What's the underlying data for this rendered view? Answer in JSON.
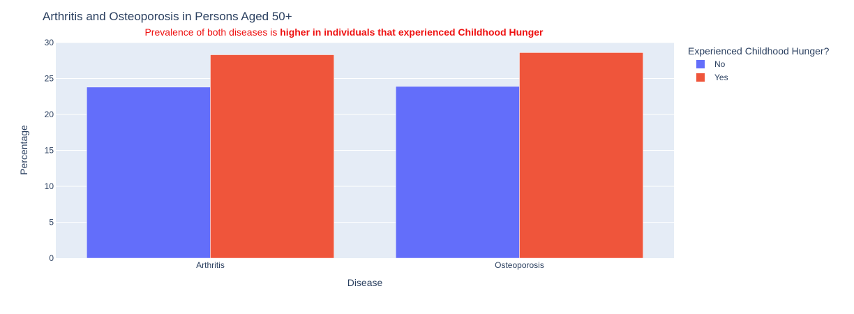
{
  "colors": {
    "plot_bg": "#e5ecf6",
    "grid": "#ffffff",
    "text": "#2a3f5f",
    "annotation": "#ee1111"
  },
  "chart_data": {
    "type": "bar",
    "title": "Arthritis and Osteoporosis in Persons Aged 50+",
    "annotation": {
      "prefix": "Prevalence of both diseases is ",
      "bold": "higher in individuals that experienced Childhood Hunger"
    },
    "xlabel": "Disease",
    "ylabel": "Percentage",
    "ylim": [
      0,
      30
    ],
    "yticks": [
      0,
      5,
      10,
      15,
      20,
      25,
      30
    ],
    "grid": true,
    "legend": {
      "title": "Experienced Childhood Hunger?",
      "placement": "top-right, outside plot"
    },
    "categories": [
      "Arthritis",
      "Osteoporosis"
    ],
    "series": [
      {
        "name": "No",
        "color": "#636efa",
        "values": [
          23.8,
          23.9
        ]
      },
      {
        "name": "Yes",
        "color": "#ef553b",
        "values": [
          28.3,
          28.6
        ]
      }
    ]
  }
}
